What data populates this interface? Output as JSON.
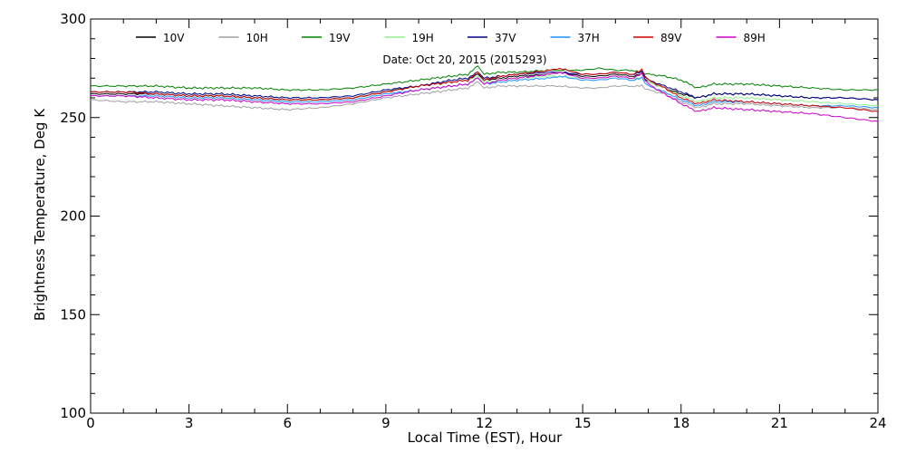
{
  "chart_data": {
    "type": "line",
    "title": "",
    "annotation": "Date: Oct 20, 2015 (2015293)",
    "xlabel": "Local Time (EST), Hour",
    "ylabel": "Brightness Temperature, Deg K",
    "xlim": [
      0,
      24
    ],
    "ylim": [
      100,
      300
    ],
    "xticks": [
      0,
      3,
      6,
      9,
      12,
      15,
      18,
      21,
      24
    ],
    "yticks": [
      100,
      150,
      200,
      250,
      300
    ],
    "grid": false,
    "legend": "top",
    "x": [
      0,
      1,
      2,
      3,
      4,
      5,
      6,
      7,
      8,
      9,
      10,
      11,
      11.5,
      11.8,
      12,
      12.5,
      13,
      14,
      14.3,
      15,
      15.5,
      16,
      16.5,
      16.8,
      17,
      17.5,
      18,
      18.5,
      19,
      20,
      21,
      22,
      23,
      24
    ],
    "series": [
      {
        "name": "10V",
        "color": "#000000",
        "values": [
          262,
          262,
          262,
          261,
          261,
          260,
          259,
          259,
          260,
          263,
          266,
          268,
          269,
          272,
          269,
          270,
          271,
          272,
          273,
          271,
          271,
          272,
          271,
          272,
          268,
          265,
          262,
          260,
          262,
          262,
          261,
          260,
          260,
          259
        ]
      },
      {
        "name": "10H",
        "color": "#a0a0a0",
        "values": [
          259,
          258,
          258,
          257,
          256,
          255,
          254,
          255,
          257,
          260,
          262,
          264,
          265,
          268,
          265,
          266,
          266,
          266,
          266,
          265,
          265,
          266,
          266,
          266,
          264,
          262,
          258,
          255,
          257,
          257,
          256,
          255,
          255,
          254
        ]
      },
      {
        "name": "19V",
        "color": "#008000",
        "values": [
          266,
          266,
          266,
          265,
          265,
          265,
          264,
          264,
          265,
          267,
          269,
          271,
          272,
          276,
          272,
          273,
          273,
          274,
          274,
          274,
          275,
          274,
          274,
          273,
          272,
          271,
          269,
          265,
          267,
          267,
          266,
          265,
          264,
          264
        ]
      },
      {
        "name": "19H",
        "color": "#90ee90",
        "values": [
          263,
          263,
          263,
          262,
          262,
          261,
          260,
          260,
          261,
          264,
          266,
          268,
          269,
          271,
          268,
          269,
          270,
          271,
          271,
          270,
          270,
          271,
          270,
          270,
          268,
          265,
          261,
          258,
          260,
          260,
          259,
          258,
          257,
          256
        ]
      },
      {
        "name": "37V",
        "color": "#00008b",
        "values": [
          263,
          263,
          263,
          262,
          262,
          261,
          260,
          260,
          261,
          264,
          266,
          269,
          270,
          273,
          270,
          271,
          272,
          273,
          273,
          272,
          272,
          273,
          272,
          273,
          269,
          266,
          263,
          260,
          262,
          262,
          261,
          260,
          260,
          259
        ]
      },
      {
        "name": "37H",
        "color": "#1e90ff",
        "values": [
          261,
          261,
          261,
          260,
          260,
          259,
          258,
          258,
          259,
          262,
          264,
          266,
          267,
          270,
          267,
          268,
          269,
          270,
          271,
          269,
          269,
          270,
          269,
          270,
          266,
          263,
          259,
          256,
          258,
          258,
          257,
          256,
          256,
          255
        ]
      },
      {
        "name": "89V",
        "color": "#cc0000",
        "values": [
          263,
          263,
          262,
          261,
          261,
          260,
          259,
          259,
          260,
          263,
          266,
          268,
          269,
          273,
          269,
          271,
          272,
          274,
          275,
          272,
          272,
          273,
          272,
          274,
          269,
          265,
          260,
          257,
          259,
          258,
          257,
          256,
          255,
          253
        ]
      },
      {
        "name": "89H",
        "color": "#cc00cc",
        "values": [
          261,
          261,
          260,
          259,
          259,
          258,
          257,
          257,
          258,
          261,
          264,
          266,
          267,
          270,
          267,
          269,
          270,
          272,
          273,
          270,
          270,
          271,
          270,
          272,
          267,
          262,
          257,
          253,
          255,
          254,
          253,
          252,
          250,
          248
        ]
      }
    ]
  }
}
